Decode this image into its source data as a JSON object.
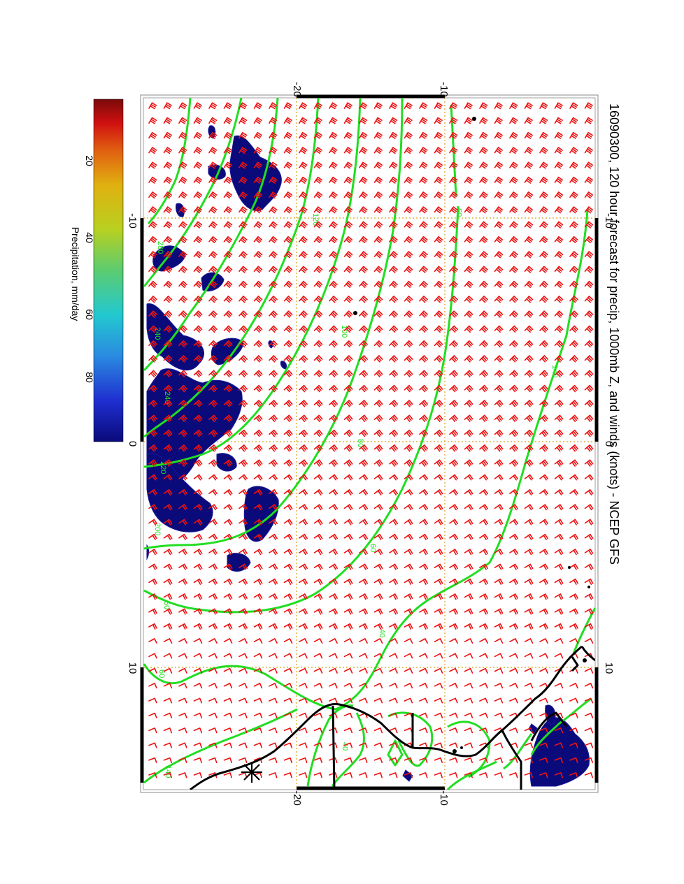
{
  "title": "16090300, 120 hour forecast for precip, 1000mb Z, and winds (knots) - NCEP GFS",
  "colorbar": {
    "label": "Precipitation, mm/day",
    "ticks": [
      "20",
      "40",
      "60",
      "80"
    ],
    "colors": [
      "#0a0a7a",
      "#1f2fd0",
      "#2a8ae0",
      "#22c8d0",
      "#5ccc70",
      "#b8d020",
      "#e0b010",
      "#e06010",
      "#d01010",
      "#7a0a0a"
    ]
  },
  "axes": {
    "top_ticks": [
      "-20",
      "-10"
    ],
    "bottom_ticks": [
      "-20",
      "-10"
    ],
    "left_ticks": [
      "-10",
      "0",
      "10"
    ],
    "right_ticks": [
      "-10",
      "0",
      "10"
    ]
  },
  "contour_labels": [
    "280",
    "240",
    "220",
    "200",
    "120",
    "100",
    "80",
    "60",
    "40",
    "60",
    "140",
    "200",
    "60",
    "140",
    "60",
    "40"
  ],
  "colors": {
    "wind_barb": "#ee1111",
    "contour": "#22dd22",
    "precip": "#0a0a7a",
    "coastline": "#000000",
    "grid": "#d8a020"
  }
}
